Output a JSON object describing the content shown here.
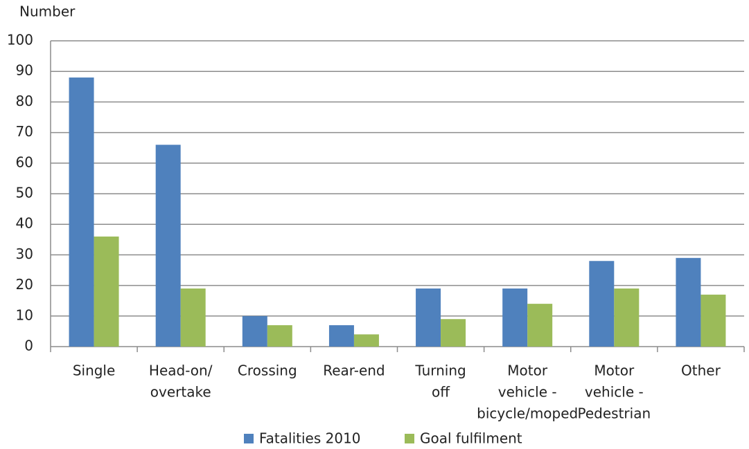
{
  "chart_data": {
    "type": "bar",
    "y_axis_label": "Number",
    "categories": [
      [
        "Single"
      ],
      [
        "Head-on/",
        "overtake"
      ],
      [
        "Crossing"
      ],
      [
        "Rear-end"
      ],
      [
        "Turning",
        "off"
      ],
      [
        "Motor",
        "vehicle -",
        "bicycle/moped"
      ],
      [
        "Motor",
        "vehicle -",
        "Pedestrian"
      ],
      [
        "Other"
      ]
    ],
    "series": [
      {
        "name": "Fatalities 2010",
        "color": "#4f81bd",
        "values": [
          88,
          66,
          10,
          7,
          19,
          19,
          28,
          29
        ]
      },
      {
        "name": "Goal fulfilment",
        "color": "#9bbb59",
        "values": [
          36,
          19,
          7,
          4,
          9,
          14,
          19,
          17
        ]
      }
    ],
    "ylim": [
      0,
      100
    ],
    "yticks": [
      0,
      10,
      20,
      30,
      40,
      50,
      60,
      70,
      80,
      90,
      100
    ],
    "grid": true,
    "legend": "bottom"
  }
}
